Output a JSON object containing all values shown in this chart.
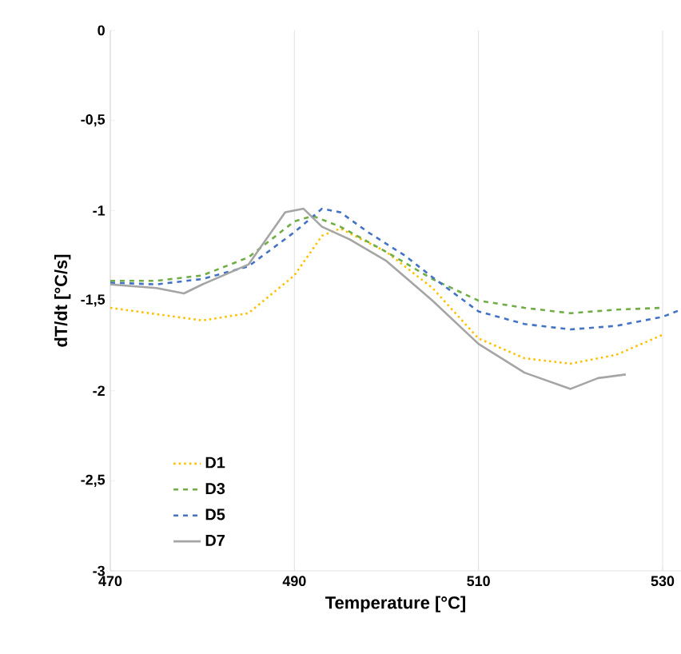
{
  "chart_data": {
    "type": "line",
    "xlabel": "Temperature [°C]",
    "ylabel": "dT/dt [°C/s]",
    "xlim": [
      470,
      532
    ],
    "ylim": [
      -3,
      0
    ],
    "xticks": [
      470,
      490,
      510,
      530
    ],
    "yticks": [
      {
        "value": 0,
        "label": "0"
      },
      {
        "value": -0.5,
        "label": "-0,5"
      },
      {
        "value": -1,
        "label": "-1"
      },
      {
        "value": -1.5,
        "label": "-1,5"
      },
      {
        "value": -2,
        "label": "-2"
      },
      {
        "value": -2.5,
        "label": "-2,5"
      },
      {
        "value": -3,
        "label": "-3"
      }
    ],
    "grid": "x",
    "legend": "bottom left",
    "marker": "none",
    "series": [
      {
        "name": "D1",
        "color": "#ffc000",
        "line_style": "dotted",
        "x": [
          470,
          480,
          485,
          490,
          493,
          495,
          500,
          505,
          510,
          515,
          520,
          525,
          530
        ],
        "values": [
          -1.54,
          -1.61,
          -1.57,
          -1.36,
          -1.14,
          -1.1,
          -1.23,
          -1.43,
          -1.71,
          -1.82,
          -1.85,
          -1.8,
          -1.69
        ]
      },
      {
        "name": "D3",
        "color": "#70ad47",
        "line_style": "dashed",
        "x": [
          470,
          475,
          480,
          485,
          490,
          492,
          495,
          500,
          505,
          510,
          515,
          520,
          525,
          530
        ],
        "values": [
          -1.39,
          -1.39,
          -1.36,
          -1.26,
          -1.06,
          -1.03,
          -1.09,
          -1.23,
          -1.38,
          -1.5,
          -1.54,
          -1.57,
          -1.55,
          -1.54
        ]
      },
      {
        "name": "D5",
        "color": "#4472c4",
        "line_style": "dashed",
        "x": [
          470,
          475,
          480,
          485,
          490,
          493,
          495,
          498,
          502,
          505,
          510,
          515,
          520,
          525,
          530,
          532
        ],
        "values": [
          -1.4,
          -1.41,
          -1.38,
          -1.31,
          -1.12,
          -0.99,
          -1.01,
          -1.12,
          -1.25,
          -1.37,
          -1.56,
          -1.63,
          -1.66,
          -1.64,
          -1.59,
          -1.55
        ]
      },
      {
        "name": "D7",
        "color": "#a5a5a5",
        "line_style": "solid",
        "x": [
          470,
          475,
          478,
          480,
          485,
          489,
          491,
          493,
          496,
          500,
          505,
          510,
          515,
          520,
          523,
          526
        ],
        "values": [
          -1.41,
          -1.43,
          -1.46,
          -1.41,
          -1.3,
          -1.01,
          -0.99,
          -1.09,
          -1.16,
          -1.28,
          -1.5,
          -1.74,
          -1.9,
          -1.99,
          -1.93,
          -1.91
        ]
      }
    ]
  }
}
